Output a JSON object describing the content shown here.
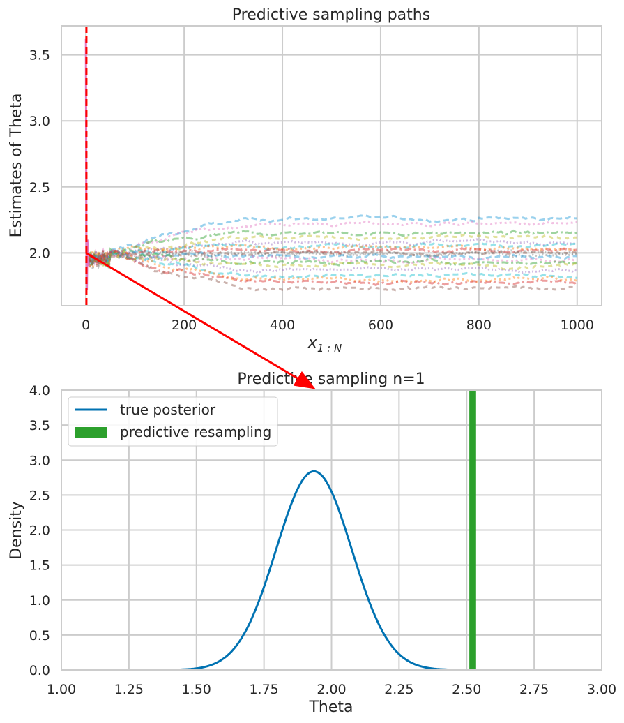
{
  "colors": {
    "grid": "#cccccc",
    "frame": "#cccccc",
    "posterior": "#0072b2",
    "resample_bar": "#2ca02c",
    "marker_red": "#ff0000",
    "path_colors": [
      "#1f9ad6",
      "#e377c2",
      "#2ca02c",
      "#bcbd22",
      "#9467bd",
      "#17becf",
      "#ff7f0e",
      "#d62728",
      "#8c564b",
      "#7f7f7f"
    ]
  },
  "chart_data": [
    {
      "type": "line",
      "title": "Predictive sampling paths",
      "xlabel": "x₁:N",
      "xlabel_main": "x",
      "xlabel_sub": "1 : N",
      "ylabel": "Estimates of Theta",
      "xlim": [
        -50,
        1050
      ],
      "ylim": [
        1.6,
        3.72
      ],
      "xticks": [
        0,
        200,
        400,
        600,
        800,
        1000
      ],
      "xtick_labels": [
        "0",
        "200",
        "400",
        "600",
        "800",
        "1000"
      ],
      "yticks": [
        2.0,
        2.5,
        3.0,
        3.5
      ],
      "ytick_labels": [
        "2.0",
        "2.5",
        "3.0",
        "3.5"
      ],
      "vline_x": 1,
      "start_spike": {
        "x": [
          0,
          1,
          2,
          3,
          5
        ],
        "y": [
          3.62,
          2.05,
          1.72,
          2.1,
          1.9
        ]
      },
      "paths_final_values": [
        2.26,
        2.22,
        2.15,
        2.12,
        2.08,
        2.06,
        2.04,
        2.02,
        2.0,
        1.99,
        1.97,
        1.95,
        1.93,
        1.91,
        1.87,
        1.83,
        1.8,
        1.78,
        1.73,
        2.0
      ],
      "grid": true
    },
    {
      "type": "line",
      "title": "Predictive sampling n=1",
      "xlabel": "Theta",
      "ylabel": "Density",
      "xlim": [
        1.0,
        3.0
      ],
      "ylim": [
        0.0,
        4.0
      ],
      "xticks": [
        1.0,
        1.25,
        1.5,
        1.75,
        2.0,
        2.25,
        2.5,
        2.75,
        3.0
      ],
      "xtick_labels": [
        "1.00",
        "1.25",
        "1.50",
        "1.75",
        "2.00",
        "2.25",
        "2.50",
        "2.75",
        "3.00"
      ],
      "yticks": [
        0.0,
        0.5,
        1.0,
        1.5,
        2.0,
        2.5,
        3.0,
        3.5,
        4.0
      ],
      "ytick_labels": [
        "0.0",
        "0.5",
        "1.0",
        "1.5",
        "2.0",
        "2.5",
        "3.0",
        "3.5",
        "4.0"
      ],
      "series": [
        {
          "name": "true posterior",
          "kind": "normal_pdf",
          "mean": 1.935,
          "sd": 0.14,
          "peak": 2.84
        },
        {
          "name": "predictive resampling",
          "kind": "bar",
          "x_left": 2.51,
          "x_right": 2.535,
          "height": 4.0
        }
      ],
      "legend": [
        "true posterior",
        "predictive resampling"
      ],
      "legend_position": "top-left",
      "grid": true
    }
  ],
  "arrow": {
    "from": "path start (x=0, theta=2.0)",
    "to": "second plot title"
  }
}
